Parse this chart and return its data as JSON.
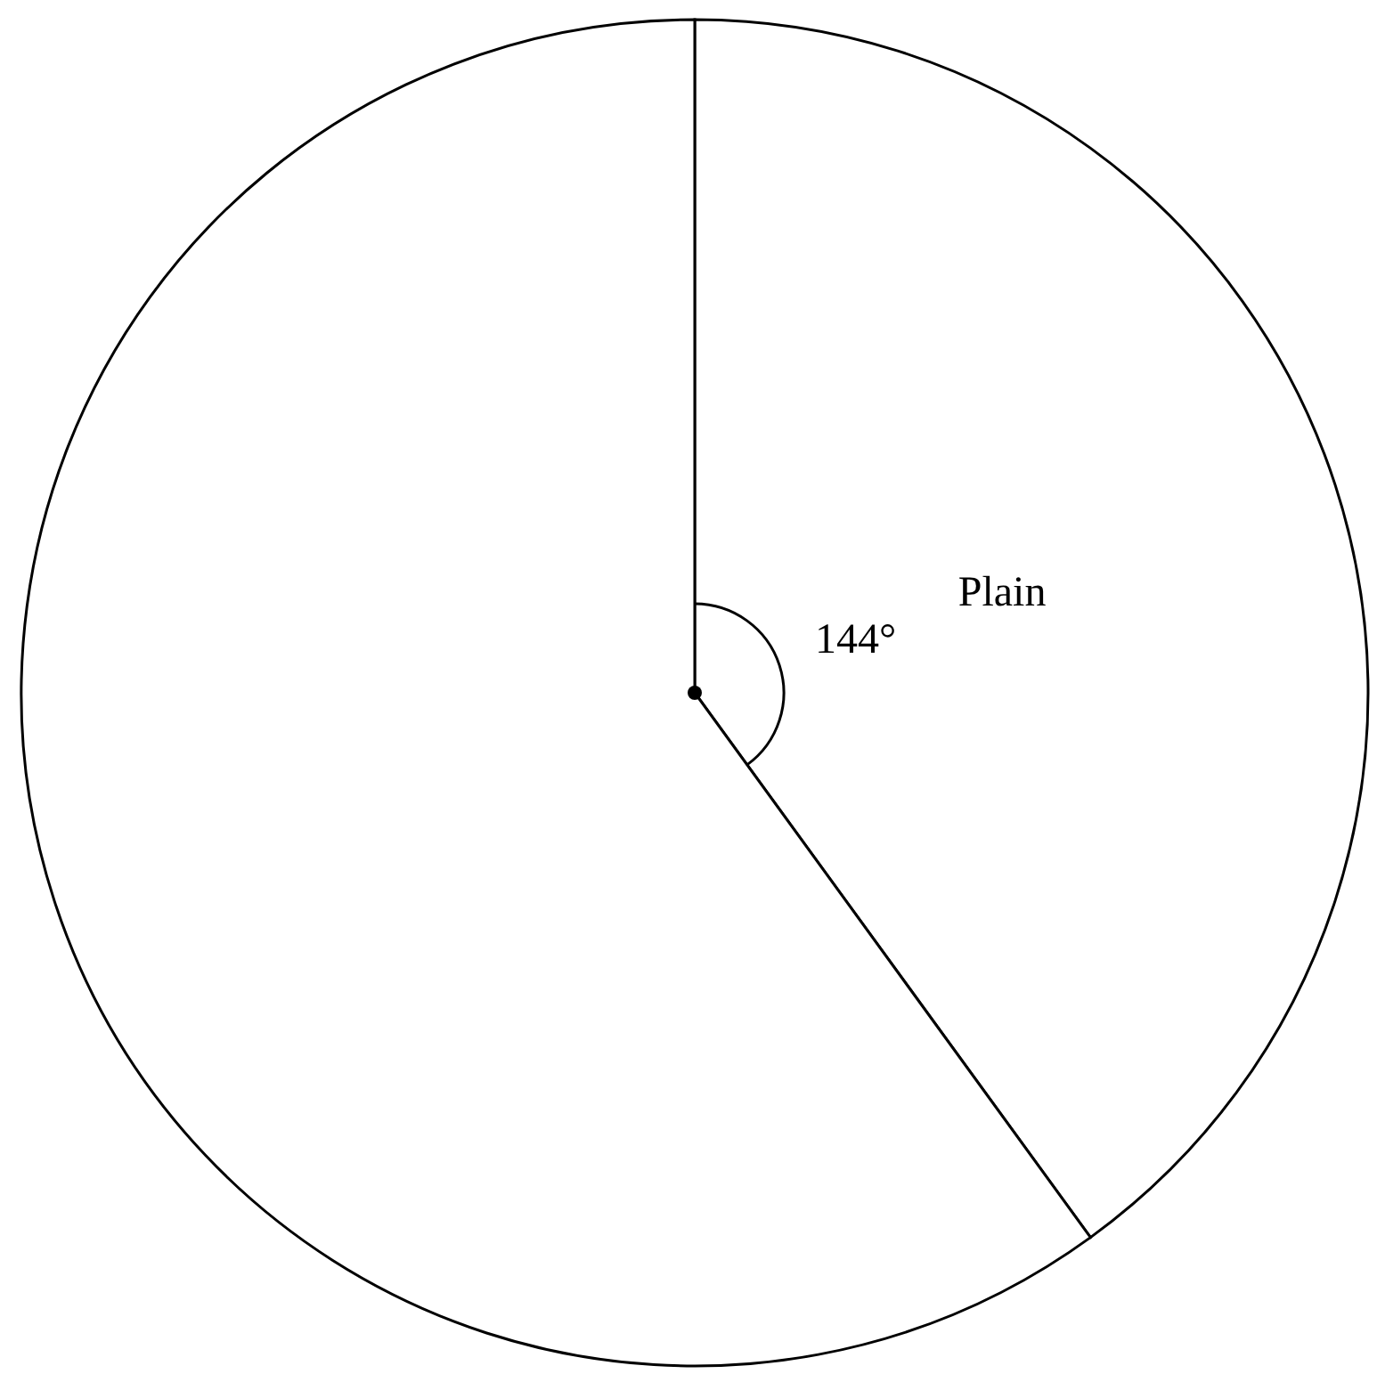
{
  "chart_data": {
    "type": "pie",
    "categories": [
      "Plain",
      null
    ],
    "values": [
      40,
      60
    ],
    "colors": [
      "#ffffff",
      "#ffffff"
    ],
    "annotations": [
      "144°"
    ]
  }
}
